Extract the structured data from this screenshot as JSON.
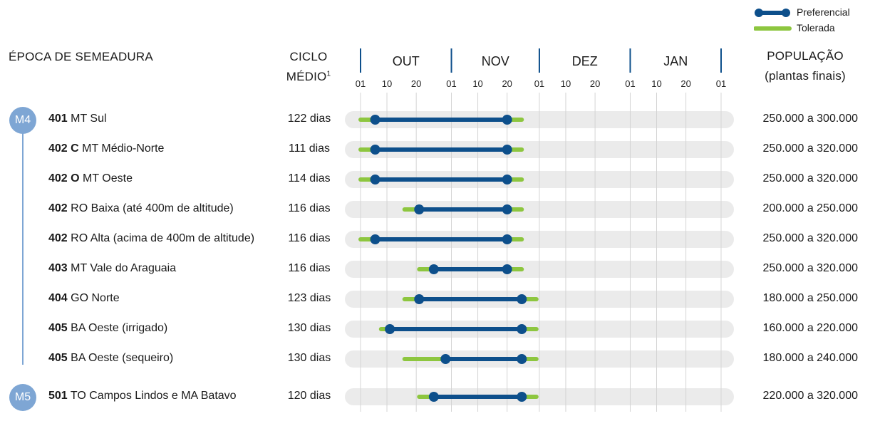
{
  "legend": {
    "preferred": "Preferencial",
    "tolerated": "Tolerada"
  },
  "headers": {
    "sowing": "ÉPOCA DE SEMEADURA",
    "cycle_line1": "CICLO",
    "cycle_line2": "MÉDIO",
    "cycle_sup": "1",
    "population_line1": "POPULAÇÃO",
    "population_line2": "(plantas finais)"
  },
  "months": [
    "OUT",
    "NOV",
    "DEZ",
    "JAN"
  ],
  "ticks": [
    "01",
    "10",
    "20",
    "01",
    "10",
    "20",
    "01",
    "10",
    "20",
    "01",
    "10",
    "20",
    "01"
  ],
  "groups": [
    {
      "badge": "M4"
    },
    {
      "badge": "M5"
    }
  ],
  "colors": {
    "preferred": "#0d4f8b",
    "tolerated": "#8dc63f",
    "track": "#ebebeb",
    "badge": "#7ea6d4"
  },
  "chart_data": {
    "type": "gantt",
    "x_axis": {
      "unit": "days from 01 OUT",
      "range": [
        0,
        123
      ],
      "ticks_days": [
        0,
        9,
        19,
        31,
        40,
        50,
        61,
        70,
        80,
        92,
        101,
        111,
        123
      ]
    },
    "rows": [
      {
        "code": "401",
        "name": "MT Sul",
        "cycle": "122 dias",
        "population": "250.000 a 300.000",
        "tol": [
          0,
          55
        ],
        "pref": [
          5,
          50
        ]
      },
      {
        "code": "402 C",
        "name": "MT Médio-Norte",
        "cycle": "111 dias",
        "population": "250.000 a 320.000",
        "tol": [
          0,
          55
        ],
        "pref": [
          5,
          50
        ]
      },
      {
        "code": "402 O",
        "name": "MT Oeste",
        "cycle": "114 dias",
        "population": "250.000 a 320.000",
        "tol": [
          0,
          55
        ],
        "pref": [
          5,
          50
        ]
      },
      {
        "code": "402",
        "name": "RO Baixa (até 400m de altitude)",
        "cycle": "116 dias",
        "population": "200.000 a 250.000",
        "tol": [
          15,
          55
        ],
        "pref": [
          20,
          50
        ]
      },
      {
        "code": "402",
        "name": "RO Alta (acima de 400m de altitude)",
        "cycle": "116 dias",
        "population": "250.000 a 320.000",
        "tol": [
          0,
          55
        ],
        "pref": [
          5,
          50
        ]
      },
      {
        "code": "403",
        "name": "MT Vale do Araguaia",
        "cycle": "116 dias",
        "population": "250.000 a 320.000",
        "tol": [
          20,
          55
        ],
        "pref": [
          25,
          50
        ]
      },
      {
        "code": "404",
        "name": "GO Norte",
        "cycle": "123 dias",
        "population": "180.000 a 250.000",
        "tol": [
          15,
          60
        ],
        "pref": [
          20,
          55
        ]
      },
      {
        "code": "405",
        "name": "BA Oeste (irrigado)",
        "cycle": "130 dias",
        "population": "160.000 a 220.000",
        "tol": [
          7,
          60
        ],
        "pref": [
          10,
          55
        ]
      },
      {
        "code": "405",
        "name": "BA Oeste (sequeiro)",
        "cycle": "130 dias",
        "population": "180.000 a 240.000",
        "tol": [
          15,
          60
        ],
        "pref": [
          29,
          55
        ]
      },
      {
        "code": "501",
        "name": "TO Campos Lindos e MA Batavo",
        "cycle": "120 dias",
        "population": "220.000 a 320.000",
        "tol": [
          20,
          60
        ],
        "pref": [
          25,
          55
        ]
      }
    ]
  }
}
